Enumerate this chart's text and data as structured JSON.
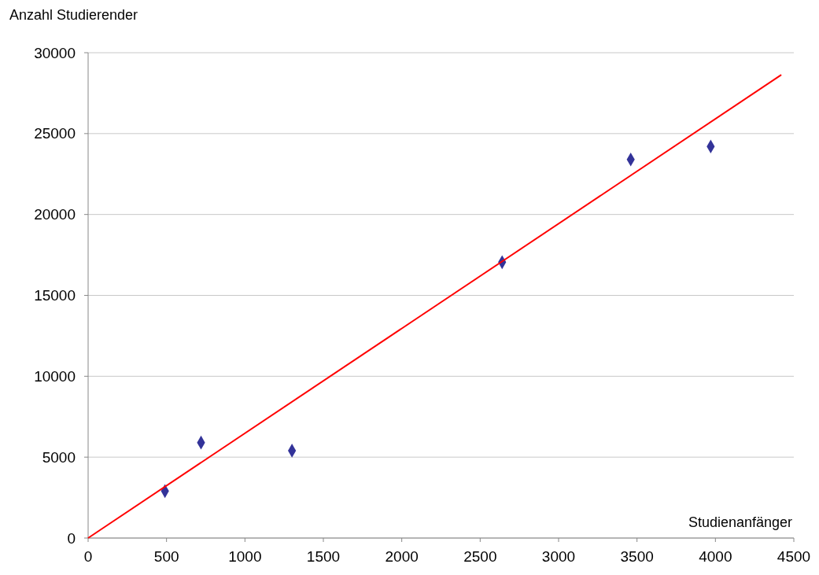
{
  "chart_data": {
    "type": "scatter",
    "xlabel": "Studienanfänger",
    "ylabel": "Anzahl Studierender",
    "xlim": [
      0,
      4500
    ],
    "xticks": [
      0,
      500,
      1000,
      1500,
      2000,
      2500,
      3000,
      3500,
      4000,
      4500
    ],
    "ylim": [
      0,
      30000
    ],
    "yticks": [
      0,
      5000,
      10000,
      15000,
      20000,
      25000,
      30000
    ],
    "grid": "y",
    "marker": "diamond",
    "series": [
      {
        "color": "#333399",
        "x": [
          490,
          720,
          1300,
          2640,
          3460,
          3970
        ],
        "values": [
          2900,
          5900,
          5400,
          17050,
          23400,
          24200
        ]
      },
      {
        "type": "line",
        "color": "#ff0000",
        "marker": "none",
        "x": [
          0,
          4420
        ],
        "values": [
          0,
          28630
        ]
      }
    ]
  }
}
